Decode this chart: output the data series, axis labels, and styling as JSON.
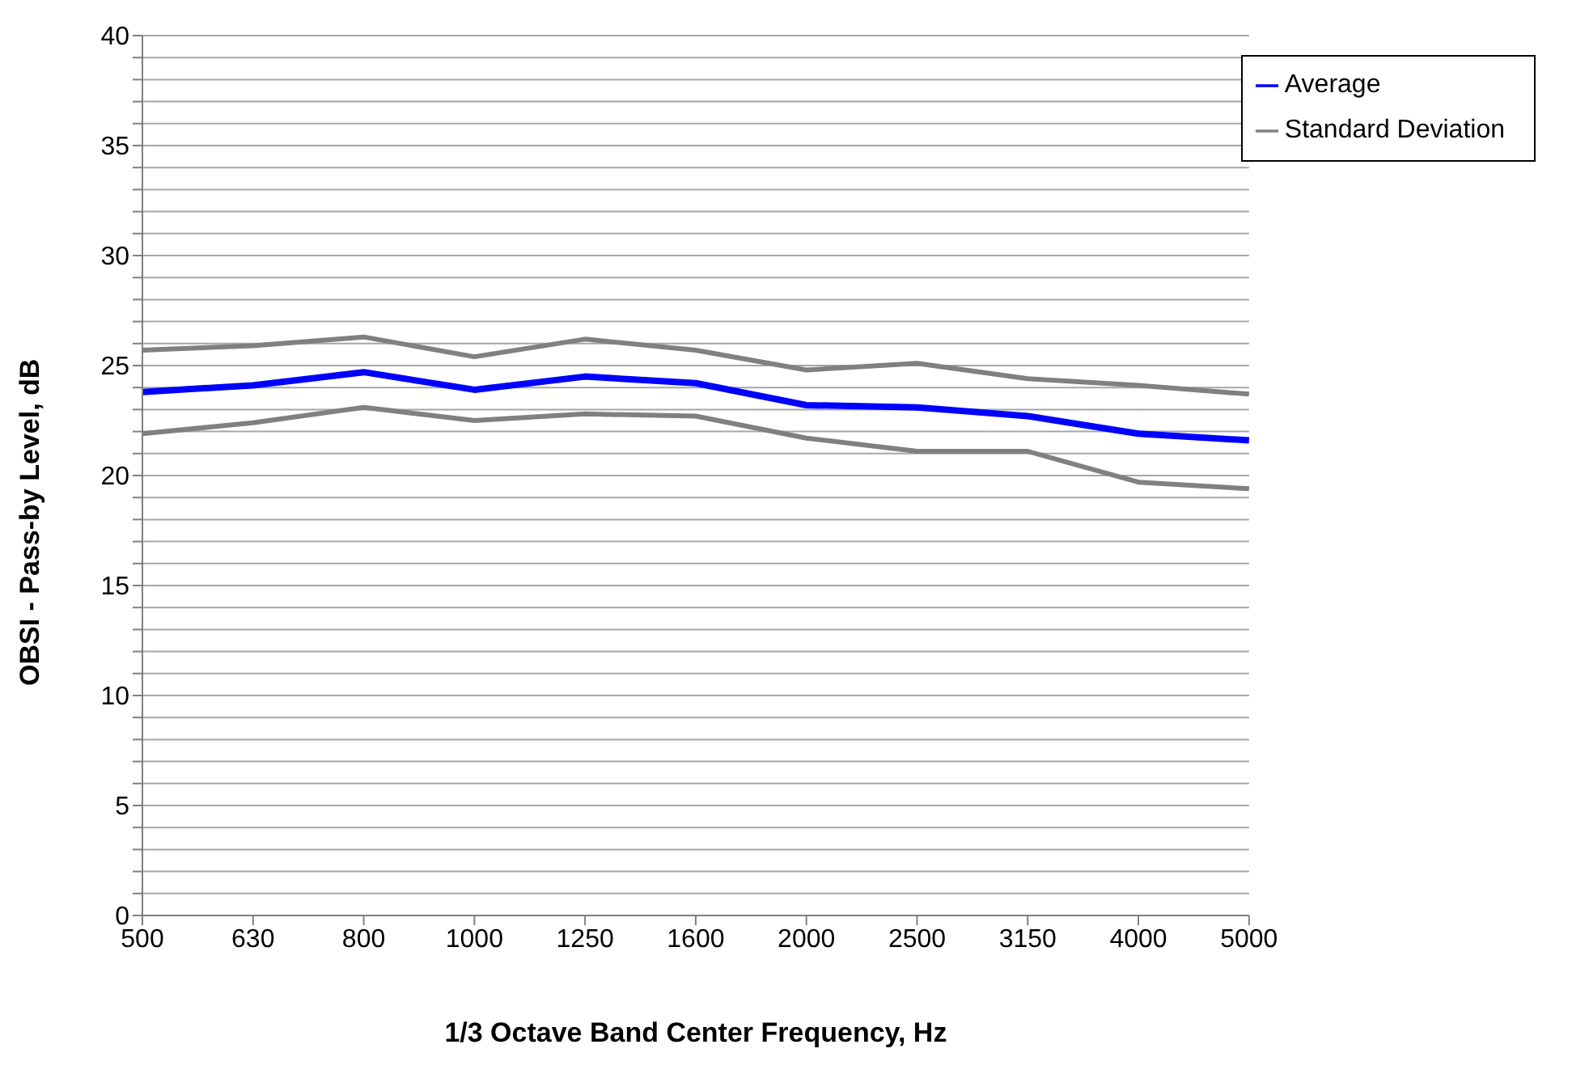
{
  "chart_data": {
    "type": "line",
    "xlabel": "1/3 Octave Band Center Frequency, Hz",
    "ylabel": "OBSI - Pass-by Level, dB",
    "categories": [
      "500",
      "630",
      "800",
      "1000",
      "1250",
      "1600",
      "2000",
      "2500",
      "3150",
      "4000",
      "5000"
    ],
    "series": [
      {
        "name": "Average",
        "color": "#0000ff",
        "values": [
          23.8,
          24.1,
          24.7,
          23.9,
          24.5,
          24.2,
          23.2,
          23.1,
          22.7,
          21.9,
          21.6
        ]
      },
      {
        "name": "Standard Deviation",
        "color": "#808080",
        "values": [
          25.7,
          25.9,
          26.3,
          25.4,
          26.2,
          25.7,
          24.8,
          25.1,
          24.4,
          24.1,
          23.7
        ]
      },
      {
        "color": "#808080",
        "values": [
          21.9,
          22.4,
          23.1,
          22.5,
          22.8,
          22.7,
          21.7,
          21.1,
          21.1,
          19.7,
          19.4
        ]
      }
    ],
    "ylim": [
      0,
      40
    ],
    "yticks": [
      0,
      {
        "value": 1,
        "label": null
      },
      {
        "value": 2,
        "label": null
      },
      {
        "value": 3,
        "label": null
      },
      {
        "value": 4,
        "label": null
      },
      5,
      {
        "value": 6,
        "label": null
      },
      {
        "value": 7,
        "label": null
      },
      {
        "value": 8,
        "label": null
      },
      {
        "value": 9,
        "label": null
      },
      10,
      {
        "value": 11,
        "label": null
      },
      {
        "value": 12,
        "label": null
      },
      {
        "value": 13,
        "label": null
      },
      {
        "value": 14,
        "label": null
      },
      15,
      {
        "value": 16,
        "label": null
      },
      {
        "value": 17,
        "label": null
      },
      {
        "value": 18,
        "label": null
      },
      {
        "value": 19,
        "label": null
      },
      20,
      {
        "value": 21,
        "label": null
      },
      {
        "value": 22,
        "label": null
      },
      {
        "value": 23,
        "label": null
      },
      {
        "value": 24,
        "label": null
      },
      25,
      {
        "value": 26,
        "label": null
      },
      {
        "value": 27,
        "label": null
      },
      {
        "value": 28,
        "label": null
      },
      {
        "value": 29,
        "label": null
      },
      30,
      {
        "value": 31,
        "label": null
      },
      {
        "value": 32,
        "label": null
      },
      {
        "value": 33,
        "label": null
      },
      {
        "value": 34,
        "label": null
      },
      35,
      {
        "value": 36,
        "label": null
      },
      {
        "value": 37,
        "label": null
      },
      {
        "value": 38,
        "label": null
      },
      {
        "value": 39,
        "label": null
      },
      40
    ],
    "grid": "y",
    "legend": "top right",
    "marker": "none",
    "line_style": "solid"
  }
}
